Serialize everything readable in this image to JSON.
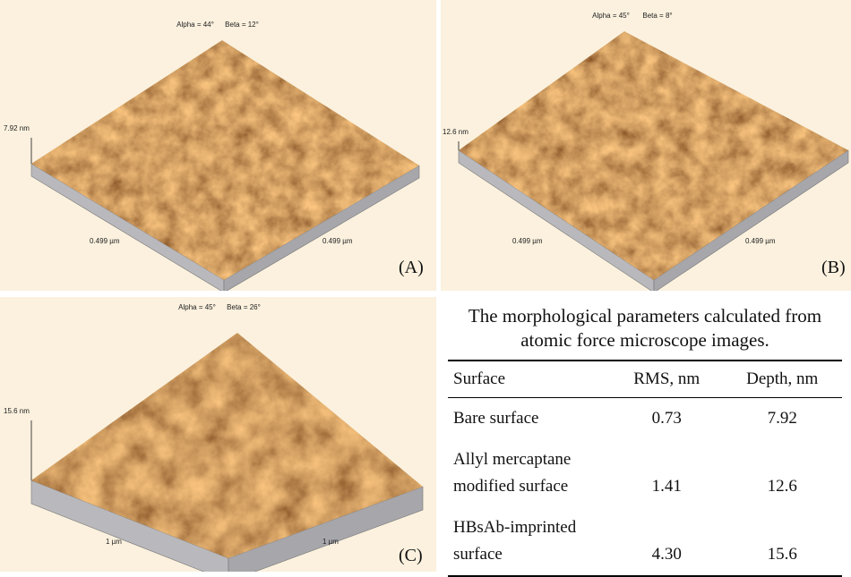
{
  "panels": [
    {
      "alpha": "Alpha = 44°",
      "beta": "Beta = 12°",
      "z_label": "7.92 nm",
      "x_left": "0.499 µm",
      "x_right": "0.499 µm",
      "label": "(A)"
    },
    {
      "alpha": "Alpha = 45°",
      "beta": "Beta = 8°",
      "z_label": "12.6 nm",
      "x_left": "0.499 µm",
      "x_right": "0.499 µm",
      "label": "(B)"
    },
    {
      "alpha": "Alpha = 45°",
      "beta": "Beta = 26°",
      "z_label": "15.6 nm",
      "x_left": "1 µm",
      "x_right": "1 µm",
      "label": "(C)"
    }
  ],
  "table": {
    "caption": "The morphological parameters calculated from atomic force microscope images.",
    "header": [
      "Surface",
      "RMS, nm",
      "Depth, nm"
    ],
    "rows": [
      [
        "Bare surface",
        "0.73",
        "7.92"
      ],
      [
        "Allyl mercaptane modified surface",
        "1.41",
        "12.6"
      ],
      [
        "HBsAb-imprinted surface",
        "4.30",
        "15.6"
      ]
    ]
  }
}
